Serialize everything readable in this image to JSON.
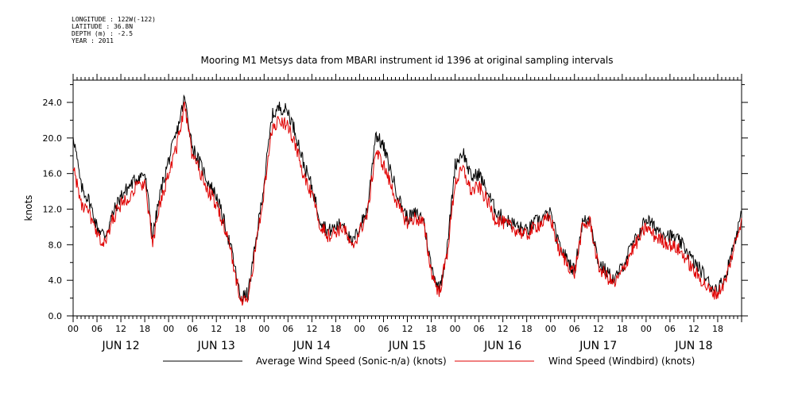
{
  "meta": {
    "longitude": "LONGITUDE : 122W(-122)",
    "latitude": "LATITUDE : 36.8N",
    "depth": "DEPTH (m) : -2.5",
    "year": "YEAR : 2011"
  },
  "chart_data": {
    "type": "line",
    "title": "Mooring M1 Metsys data from MBARI instrument id 1396 at original sampling intervals",
    "xlabel": "",
    "ylabel": "knots",
    "ylim": [
      0,
      26.5
    ],
    "y_ticks": [
      "0.0",
      "4.0",
      "8.0",
      "12.0",
      "16.0",
      "20.0",
      "24.0"
    ],
    "x_range_hours": [
      0,
      168
    ],
    "hour_ticks": [
      "00",
      "06",
      "12",
      "18",
      "00",
      "06",
      "12",
      "18",
      "00",
      "06",
      "12",
      "18",
      "00",
      "06",
      "12",
      "18",
      "00",
      "06",
      "12",
      "18",
      "00",
      "06",
      "12",
      "18",
      "00",
      "06",
      "12",
      "18"
    ],
    "day_labels": [
      "JUN 12",
      "JUN 13",
      "JUN 14",
      "JUN 15",
      "JUN 16",
      "JUN 17",
      "JUN 18"
    ],
    "grid": false,
    "legend_position": "bottom",
    "series": [
      {
        "name": "Average Wind Speed (Sonic-n/a) (knots)",
        "color": "#000000",
        "x": [
          0,
          2,
          4,
          6,
          8,
          10,
          12,
          14,
          16,
          18,
          20,
          22,
          24,
          26,
          28,
          30,
          32,
          34,
          36,
          38,
          40,
          42,
          44,
          46,
          48,
          50,
          52,
          54,
          56,
          58,
          60,
          62,
          64,
          66,
          68,
          70,
          72,
          74,
          76,
          78,
          80,
          82,
          84,
          86,
          88,
          90,
          92,
          94,
          96,
          98,
          100,
          102,
          104,
          106,
          108,
          110,
          112,
          114,
          116,
          118,
          120,
          122,
          124,
          126,
          128,
          130,
          132,
          134,
          136,
          138,
          140,
          142,
          144,
          146,
          148,
          150,
          152,
          154,
          156,
          158,
          160,
          162,
          164,
          166,
          168
        ],
        "values": [
          20.5,
          14.5,
          13.0,
          10.0,
          9.0,
          11.5,
          13.5,
          14.5,
          15.5,
          16.0,
          9.0,
          14.0,
          17.5,
          20.5,
          24.5,
          19.0,
          17.0,
          15.0,
          13.5,
          10.5,
          7.0,
          2.0,
          2.5,
          8.5,
          15.0,
          22.5,
          23.5,
          23.0,
          20.5,
          17.0,
          14.5,
          11.0,
          9.5,
          10.0,
          10.5,
          8.0,
          10.0,
          12.0,
          20.5,
          19.0,
          16.0,
          13.0,
          11.0,
          11.5,
          11.0,
          5.5,
          3.0,
          7.5,
          17.0,
          18.5,
          15.5,
          16.0,
          14.0,
          12.0,
          11.0,
          10.5,
          10.0,
          9.5,
          10.5,
          11.0,
          11.5,
          8.0,
          6.5,
          5.0,
          10.5,
          11.0,
          6.0,
          5.0,
          4.0,
          5.5,
          7.5,
          9.0,
          11.0,
          10.0,
          9.5,
          9.0,
          8.5,
          7.5,
          6.0,
          5.0,
          3.5,
          3.0,
          4.5,
          8.0,
          11.5
        ]
      },
      {
        "name": "Wind Speed (Windbird) (knots)",
        "color": "#e00000",
        "x": [
          0,
          2,
          4,
          6,
          8,
          10,
          12,
          14,
          16,
          18,
          20,
          22,
          24,
          26,
          28,
          30,
          32,
          34,
          36,
          38,
          40,
          42,
          44,
          46,
          48,
          50,
          52,
          54,
          56,
          58,
          60,
          62,
          64,
          66,
          68,
          70,
          72,
          74,
          76,
          78,
          80,
          82,
          84,
          86,
          88,
          90,
          92,
          94,
          96,
          98,
          100,
          102,
          104,
          106,
          108,
          110,
          112,
          114,
          116,
          118,
          120,
          122,
          124,
          126,
          128,
          130,
          132,
          134,
          136,
          138,
          140,
          142,
          144,
          146,
          148,
          150,
          152,
          154,
          156,
          158,
          160,
          162,
          164,
          166,
          168
        ],
        "values": [
          17.0,
          12.5,
          11.5,
          9.0,
          8.0,
          11.0,
          12.5,
          13.5,
          14.5,
          15.0,
          8.0,
          13.0,
          16.0,
          19.0,
          23.5,
          18.0,
          16.0,
          14.0,
          12.5,
          10.0,
          6.5,
          1.8,
          2.0,
          8.0,
          14.0,
          21.0,
          22.0,
          21.5,
          19.0,
          15.5,
          13.5,
          10.5,
          9.0,
          9.5,
          10.0,
          7.5,
          9.5,
          11.5,
          18.5,
          17.0,
          14.5,
          12.0,
          10.5,
          11.0,
          10.5,
          5.0,
          2.5,
          7.0,
          15.0,
          16.5,
          14.0,
          14.5,
          13.0,
          11.0,
          10.5,
          10.0,
          9.5,
          9.0,
          10.0,
          10.5,
          11.0,
          7.5,
          6.0,
          4.8,
          10.0,
          10.5,
          5.5,
          4.5,
          3.5,
          5.0,
          7.0,
          8.5,
          10.0,
          9.0,
          8.5,
          8.0,
          7.5,
          6.5,
          5.0,
          4.0,
          2.8,
          2.5,
          4.0,
          7.5,
          11.0
        ]
      }
    ]
  }
}
